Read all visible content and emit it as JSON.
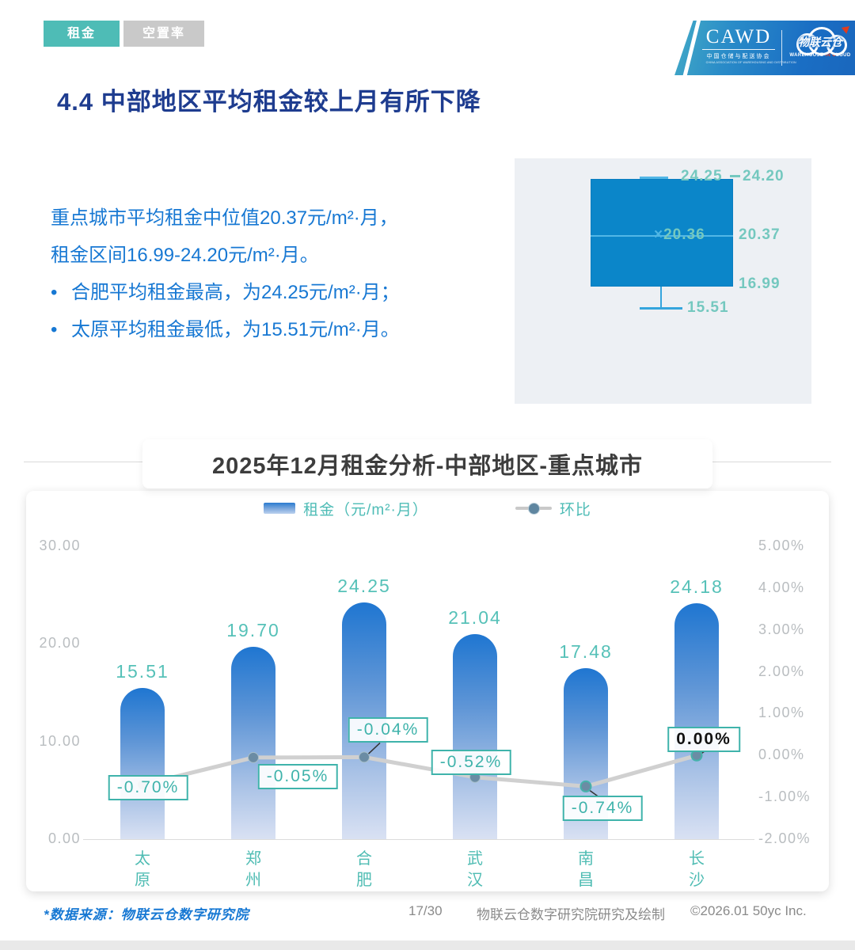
{
  "tabs": [
    {
      "label": "租金",
      "active": true
    },
    {
      "label": "空置率",
      "active": false
    }
  ],
  "logo": {
    "cawd": "CAWD",
    "cawd_cn": "中国仓储与配送协会",
    "cawd_en": "CHINA ASSOCIATION OF WAREHOUSING AND DISTRIBUTION",
    "cloud_cn": "物联云仓",
    "cloud_en_1": "WAREHOUSE ",
    "cloud_en_2": "IN",
    "cloud_en_3": " C",
    "cloud_en_4": "LOUD"
  },
  "page_title": "4.4 中部地区平均租金较上月有所下降",
  "summary": {
    "lines": [
      "重点城市平均租金中位值20.37元/m²·月，",
      "租金区间16.99-24.20元/m²·月。"
    ],
    "bullets": [
      "合肥平均租金最高，为24.25元/m²·月；",
      "太原平均租金最低，为15.51元/m²·月。"
    ],
    "bullet_mark": "•"
  },
  "boxplot": {
    "max": "24.25",
    "q3": "24.20",
    "mean_marker": "×",
    "mean": "20.36",
    "median": "20.37",
    "q1": "16.99",
    "min": "15.51"
  },
  "chart_data": {
    "type": "bar+line",
    "title": "2025年12月租金分析-中部地区-重点城市",
    "categories": [
      "太原",
      "郑州",
      "合肥",
      "武汉",
      "南昌",
      "长沙"
    ],
    "series": [
      {
        "name": "租金（元/m²·月）",
        "type": "bar",
        "axis": "left",
        "values": [
          15.51,
          19.7,
          24.25,
          21.04,
          17.48,
          24.18
        ],
        "labels": [
          "15.51",
          "19.70",
          "24.25",
          "21.04",
          "17.48",
          "24.18"
        ]
      },
      {
        "name": "环比",
        "type": "line",
        "axis": "right",
        "values": [
          -0.7,
          -0.05,
          -0.04,
          -0.52,
          -0.74,
          0.0
        ],
        "labels": [
          "-0.70%",
          "-0.05%",
          "-0.04%",
          "-0.52%",
          "-0.74%",
          "0.00%"
        ]
      }
    ],
    "left_axis": {
      "min": 0,
      "max": 30,
      "ticks": [
        "30.00",
        "20.00",
        "10.00",
        "0.00"
      ],
      "tick_values": [
        30,
        20,
        10,
        0
      ]
    },
    "right_axis": {
      "min": -2,
      "max": 5,
      "ticks": [
        "5.00%",
        "4.00%",
        "3.00%",
        "2.00%",
        "1.00%",
        "0.00%",
        "-1.00%",
        "-2.00%"
      ],
      "tick_values": [
        5,
        4,
        3,
        2,
        1,
        0,
        -1,
        -2
      ]
    },
    "legend_position": "top",
    "grid": false
  },
  "footer": {
    "source": "*数据来源：物联云仓数字研究院",
    "page": "17/30",
    "credit": "物联云仓数字研究院研究及绘制",
    "copyright": "©2026.01 50yc Inc."
  },
  "colors": {
    "accent_teal": "#4ebcb6",
    "label_teal": "#3fb3ab",
    "title_blue": "#1e3c8f",
    "body_blue": "#1778d3",
    "box_blue": "#0b86c9",
    "bar_gradient_top": "#1f76d1",
    "bar_gradient_bottom": "#d9e1f3",
    "line_gray": "#d0d0d0",
    "dot_slate": "#6b8ca4",
    "axis_gray": "#b9bdc0"
  }
}
